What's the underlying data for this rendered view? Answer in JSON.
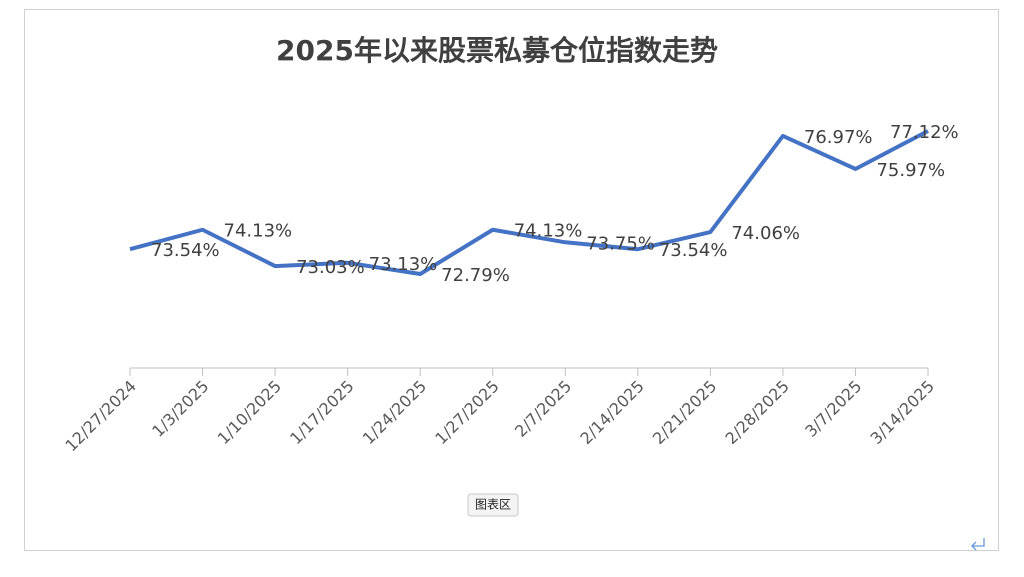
{
  "chart_data": {
    "type": "line",
    "title": "2025年以来股票私募仓位指数走势",
    "categories": [
      "12/27/2024",
      "1/3/2025",
      "1/10/2025",
      "1/17/2025",
      "1/24/2025",
      "1/27/2025",
      "2/7/2025",
      "2/14/2025",
      "2/21/2025",
      "2/28/2025",
      "3/7/2025",
      "3/14/2025"
    ],
    "values": [
      73.54,
      74.13,
      73.03,
      73.13,
      72.79,
      74.13,
      73.75,
      73.54,
      74.06,
      76.97,
      75.97,
      77.12
    ],
    "value_labels": [
      "73.54%",
      "74.13%",
      "73.03%",
      "73.13%",
      "72.79%",
      "74.13%",
      "73.75%",
      "73.54%",
      "74.06%",
      "76.97%",
      "75.97%",
      "77.12%"
    ],
    "color": "#4472c4"
  },
  "tooltip": "图表区"
}
